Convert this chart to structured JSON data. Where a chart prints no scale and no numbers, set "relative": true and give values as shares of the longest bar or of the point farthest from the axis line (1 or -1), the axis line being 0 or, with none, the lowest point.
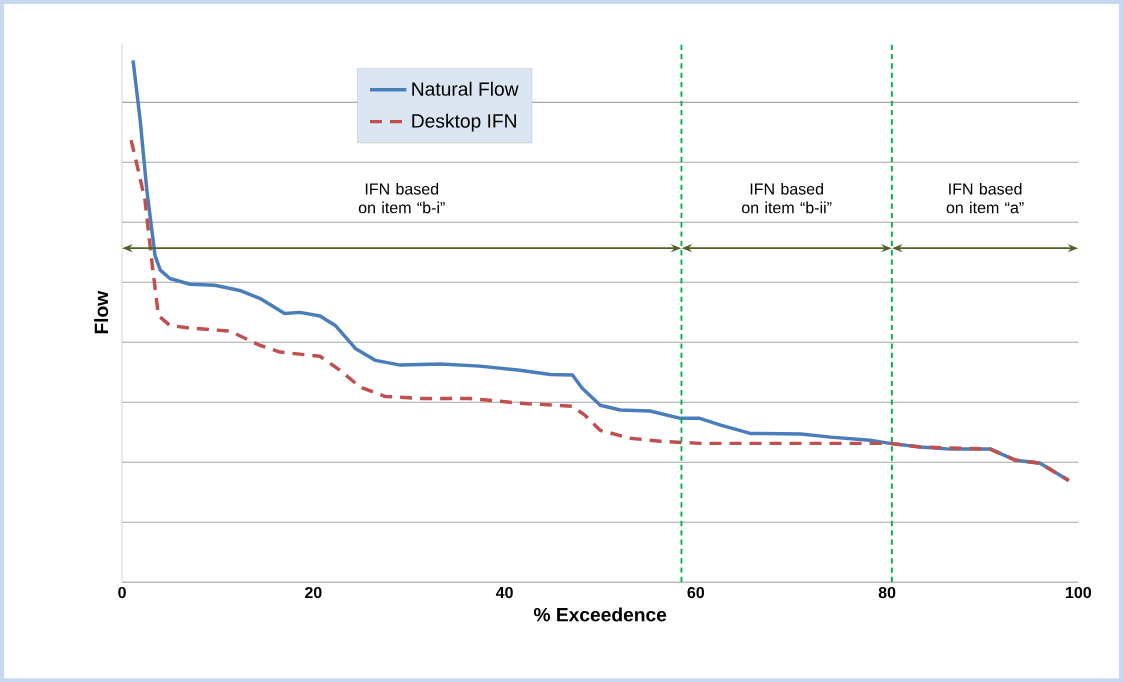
{
  "chart_data": {
    "type": "line",
    "xlabel": "% Exceedence",
    "ylabel": "Flow",
    "xlim": [
      0,
      100
    ],
    "xticks": [
      0,
      20,
      40,
      60,
      80,
      100
    ],
    "relative": true,
    "grid": "y",
    "legend": "top left",
    "series": [
      {
        "name": "Natural Flow",
        "color": "#4a7ebb",
        "line_style": "solid",
        "x": [
          1.15,
          1.9,
          2.6,
          3.45,
          4.0,
          5.0,
          7.1,
          9.7,
          12.3,
          14.4,
          17.0,
          18.6,
          20.7,
          22.3,
          24.4,
          26.5,
          29.1,
          33.3,
          37.4,
          41.6,
          44.8,
          47.1,
          48.1,
          50.0,
          52.1,
          55.2,
          58.4,
          60.4,
          62.6,
          65.7,
          71.0,
          74.1,
          78.2,
          80.3,
          83.5,
          86.6,
          90.8,
          93.4,
          96.0,
          99.0
        ],
        "values": [
          1.0,
          0.885,
          0.75,
          0.626,
          0.598,
          0.582,
          0.571,
          0.569,
          0.559,
          0.544,
          0.515,
          0.517,
          0.51,
          0.492,
          0.448,
          0.425,
          0.416,
          0.418,
          0.414,
          0.406,
          0.398,
          0.397,
          0.372,
          0.339,
          0.33,
          0.328,
          0.314,
          0.314,
          0.301,
          0.285,
          0.284,
          0.278,
          0.272,
          0.266,
          0.259,
          0.255,
          0.255,
          0.234,
          0.228,
          0.195
        ]
      },
      {
        "name": "Desktop IFN",
        "color": "#c0504d",
        "line_style": "dashed",
        "x": [
          0.95,
          1.7,
          2.4,
          3.1,
          3.8,
          5.0,
          7.1,
          11.3,
          14.4,
          16.5,
          20.7,
          22.8,
          24.9,
          27.5,
          31.2,
          36.4,
          41.6,
          47.1,
          48.4,
          50.0,
          53.1,
          56.3,
          60.4,
          71.0,
          78.2,
          80.3,
          83.5,
          90.8,
          93.4,
          96.0,
          99.0
        ],
        "values": [
          0.847,
          0.789,
          0.732,
          0.617,
          0.511,
          0.492,
          0.487,
          0.481,
          0.454,
          0.441,
          0.433,
          0.406,
          0.374,
          0.356,
          0.352,
          0.352,
          0.343,
          0.337,
          0.32,
          0.291,
          0.276,
          0.27,
          0.266,
          0.266,
          0.266,
          0.266,
          0.259,
          0.255,
          0.234,
          0.228,
          0.195
        ]
      }
    ],
    "ref_lines": [
      {
        "axis": "x",
        "value": 58.5,
        "color": "#00b050",
        "line_style": "dashed"
      },
      {
        "axis": "x",
        "value": 80.5,
        "color": "#00b050",
        "line_style": "dashed"
      }
    ],
    "annotations": [
      "IFN based on item “b-i”",
      "IFN based on item “b-ii”",
      "IFN based on item “a”"
    ]
  }
}
